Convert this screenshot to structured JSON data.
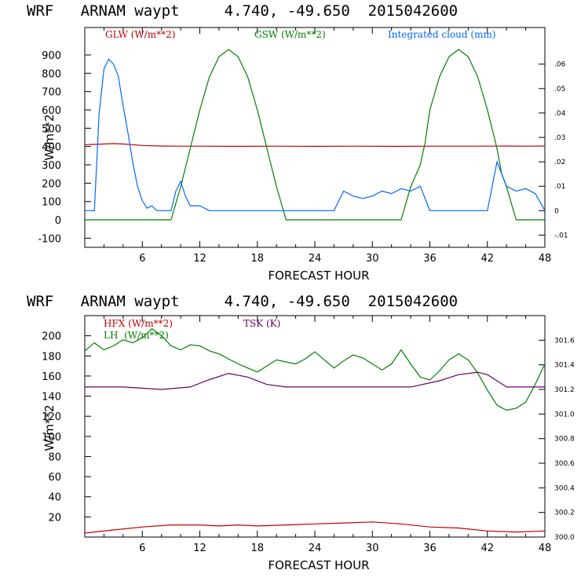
{
  "chart_data": [
    {
      "type": "line",
      "title": "WRF   ARNAM waypt     4.740, -49.650  2015042600",
      "xlabel": "FORECAST HOUR",
      "ylabel": "W/m**2",
      "xlim": [
        0,
        48
      ],
      "ylim": [
        -150,
        1050
      ],
      "xticks": [
        "6",
        "12",
        "18",
        "24",
        "30",
        "36",
        "42",
        "48"
      ],
      "yticks": [
        "-100",
        "0",
        "100",
        "200",
        "300",
        "400",
        "500",
        "600",
        "700",
        "800",
        "900"
      ],
      "y2lim": [
        -0.015,
        0.075
      ],
      "y2ticks": [
        "-.01",
        "0",
        ".01",
        ".02",
        ".03",
        ".04",
        ".05",
        ".06"
      ],
      "colors": {
        "glw": "#c00000",
        "gsw": "#008000",
        "cloud": "#0066ff"
      },
      "legend": {
        "glw": "GLW (W/m**2)",
        "gsw": "GSW (W/m**2)",
        "cloud": "Integrated cloud (mm)"
      },
      "series": [
        {
          "name": "GLW (W/m**2)",
          "color": "#c00000",
          "axis": "left",
          "x": [
            0,
            1,
            2,
            3,
            4,
            5,
            6,
            8,
            10,
            12,
            16,
            20,
            24,
            28,
            32,
            36,
            40,
            44,
            46,
            48
          ],
          "y": [
            410,
            412,
            414,
            416,
            414,
            410,
            406,
            403,
            402,
            402,
            401,
            402,
            401,
            402,
            401,
            402,
            402,
            403,
            402,
            403
          ]
        },
        {
          "name": "GSW (W/m**2)",
          "color": "#008000",
          "axis": "left",
          "x": [
            0,
            9,
            10,
            11,
            12,
            13,
            14,
            15,
            16,
            17,
            18,
            19,
            20,
            21,
            22,
            33,
            34,
            35,
            35.5,
            36,
            37,
            38,
            39,
            40,
            41,
            42,
            43,
            43.5,
            44,
            45,
            48
          ],
          "y": [
            0,
            0,
            180,
            390,
            600,
            780,
            890,
            930,
            890,
            780,
            600,
            390,
            180,
            0,
            0,
            0,
            180,
            300,
            420,
            600,
            780,
            890,
            930,
            890,
            780,
            600,
            390,
            250,
            180,
            0,
            0
          ]
        },
        {
          "name": "Integrated cloud (mm)",
          "color": "#0066ff",
          "axis": "right",
          "x": [
            0,
            1,
            1.5,
            2,
            2.5,
            3,
            3.5,
            4,
            4.5,
            5,
            5.5,
            6,
            6.5,
            7,
            7.5,
            8,
            9,
            9.5,
            10,
            10.5,
            11,
            12,
            13,
            26,
            27,
            28,
            29,
            30,
            31,
            32,
            33,
            34,
            35,
            36,
            42,
            43,
            44,
            45,
            46,
            47,
            48
          ],
          "y": [
            0,
            0,
            0.04,
            0.058,
            0.062,
            0.06,
            0.055,
            0.043,
            0.032,
            0.02,
            0.01,
            0.004,
            0.001,
            0.002,
            0,
            0,
            0,
            0.008,
            0.012,
            0.006,
            0.002,
            0.002,
            0,
            0,
            0.008,
            0.006,
            0.005,
            0.006,
            0.008,
            0.007,
            0.009,
            0.008,
            0.01,
            0,
            0,
            0.02,
            0.01,
            0.008,
            0.009,
            0.007,
            0
          ]
        }
      ]
    },
    {
      "type": "line",
      "title": "WRF   ARNAM waypt     4.740, -49.650  2015042600",
      "xlabel": "FORECAST HOUR",
      "ylabel": "W/m**2",
      "xlim": [
        0,
        48
      ],
      "ylim": [
        0,
        220
      ],
      "xticks": [
        "6",
        "12",
        "18",
        "24",
        "30",
        "36",
        "42",
        "48"
      ],
      "yticks": [
        "20",
        "40",
        "60",
        "80",
        "100",
        "120",
        "140",
        "160",
        "180",
        "200"
      ],
      "y2lim": [
        300.0,
        301.8
      ],
      "y2ticks": [
        "300.0",
        "300.2",
        "300.4",
        "300.6",
        "300.8",
        "301.0",
        "301.2",
        "301.4",
        "301.6"
      ],
      "colors": {
        "hfx": "#c00000",
        "lh": "#008000",
        "tsk": "#660066"
      },
      "legend": {
        "hfx": "HFX (W/m**2)",
        "lh": "LH  (W/m**2)",
        "tsk": "TSK (K)"
      },
      "series": [
        {
          "name": "HFX (W/m**2)",
          "color": "#c00000",
          "axis": "left",
          "x": [
            0,
            3,
            6,
            9,
            12,
            14,
            16,
            18,
            21,
            24,
            27,
            30,
            33,
            36,
            39,
            42,
            45,
            48
          ],
          "y": [
            4,
            7,
            10,
            12,
            12,
            11,
            12,
            11,
            12,
            13,
            14,
            15,
            13,
            10,
            9,
            6,
            5,
            6
          ]
        },
        {
          "name": "LH  (W/m**2)",
          "color": "#008000",
          "axis": "left",
          "x": [
            0,
            1,
            2,
            3,
            4,
            5,
            6,
            7,
            8,
            9,
            10,
            11,
            12,
            13,
            14,
            15,
            16,
            17,
            18,
            19,
            20,
            21,
            22,
            23,
            24,
            25,
            26,
            27,
            28,
            29,
            30,
            31,
            32,
            33,
            34,
            35,
            36,
            37,
            38,
            39,
            40,
            41,
            42,
            43,
            44,
            45,
            46,
            47,
            48
          ],
          "y": [
            185,
            193,
            186,
            190,
            196,
            193,
            198,
            207,
            200,
            190,
            186,
            191,
            190,
            185,
            182,
            177,
            172,
            168,
            164,
            170,
            176,
            174,
            172,
            177,
            184,
            176,
            168,
            175,
            181,
            178,
            172,
            166,
            172,
            186,
            172,
            159,
            156,
            165,
            176,
            182,
            176,
            163,
            146,
            131,
            126,
            128,
            134,
            152,
            172
          ]
        },
        {
          "name": "TSK (K)",
          "color": "#660066",
          "axis": "right",
          "x": [
            0,
            4,
            8,
            11,
            13,
            15,
            17,
            19,
            21,
            24,
            30,
            34,
            37,
            39,
            41,
            42,
            43,
            44,
            48
          ],
          "y": [
            301.22,
            301.22,
            301.2,
            301.22,
            301.28,
            301.33,
            301.3,
            301.24,
            301.22,
            301.22,
            301.22,
            301.22,
            301.27,
            301.32,
            301.34,
            301.32,
            301.27,
            301.22,
            301.22
          ]
        }
      ]
    }
  ]
}
